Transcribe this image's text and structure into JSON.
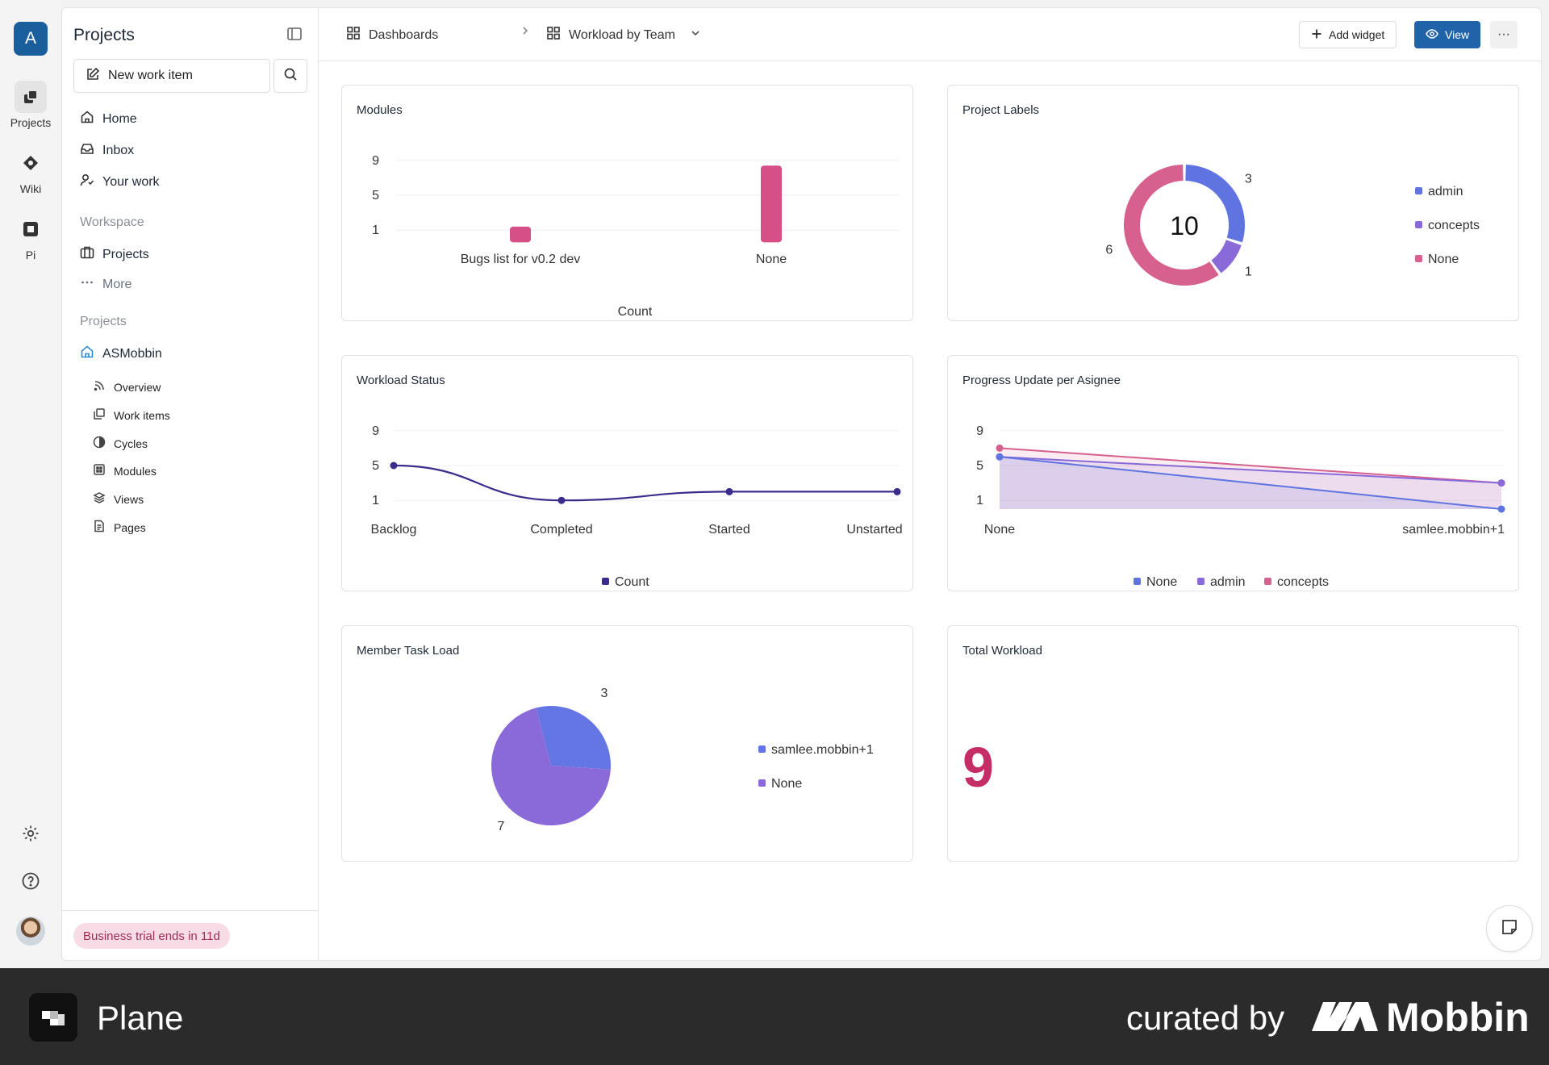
{
  "rail": {
    "workspace_initial": "A",
    "items": [
      {
        "label": "Projects",
        "icon": "projects-icon"
      },
      {
        "label": "Wiki",
        "icon": "wiki-icon"
      },
      {
        "label": "Pi",
        "icon": "pi-icon"
      }
    ]
  },
  "sidebar": {
    "title": "Projects",
    "new_item_label": "New work item",
    "nav": [
      {
        "label": "Home"
      },
      {
        "label": "Inbox"
      },
      {
        "label": "Your work"
      }
    ],
    "workspace_label": "Workspace",
    "workspace_items": [
      {
        "label": "Projects"
      },
      {
        "label": "More"
      }
    ],
    "projects_label": "Projects",
    "project": {
      "name": "ASMobbin",
      "items": [
        {
          "label": "Overview"
        },
        {
          "label": "Work items"
        },
        {
          "label": "Cycles"
        },
        {
          "label": "Modules"
        },
        {
          "label": "Views"
        },
        {
          "label": "Pages"
        }
      ]
    },
    "trial_badge": "Business trial ends in 11d"
  },
  "topbar": {
    "breadcrumb_root": "Dashboards",
    "breadcrumb_current": "Workload by Team",
    "add_widget_label": "Add widget",
    "view_label": "View",
    "more_label": "···"
  },
  "widgets": {
    "modules": {
      "title": "Modules"
    },
    "project_labels": {
      "title": "Project Labels",
      "total": "10"
    },
    "workload_status": {
      "title": "Workload Status"
    },
    "progress": {
      "title": "Progress Update per Asignee"
    },
    "member_task_load": {
      "title": "Member Task Load"
    },
    "total_workload": {
      "title": "Total Workload",
      "value": "9"
    }
  },
  "chart_data": [
    {
      "type": "bar",
      "title": "Modules",
      "categories": [
        "Bugs list for v0.2 dev",
        "None"
      ],
      "values": [
        1,
        8
      ],
      "yticks": [
        9,
        5,
        1
      ],
      "legend": [
        "Count"
      ],
      "color": "#d64f86"
    },
    {
      "type": "pie",
      "title": "Project Labels",
      "center_label": "10",
      "labels": [
        "admin",
        "concepts",
        "None"
      ],
      "values": [
        3,
        1,
        6
      ],
      "colors": [
        "#5f74e0",
        "#8a6ad8",
        "#d6608e"
      ]
    },
    {
      "type": "line",
      "title": "Workload Status",
      "categories": [
        "Backlog",
        "Completed",
        "Started",
        "Unstarted"
      ],
      "values": [
        5,
        1,
        2,
        2
      ],
      "yticks": [
        9,
        5,
        1
      ],
      "legend": [
        "Count"
      ],
      "color": "#3b2b8c"
    },
    {
      "type": "area",
      "title": "Progress Update per Asignee",
      "categories": [
        "None",
        "samlee.mobbin+1"
      ],
      "yticks": [
        9,
        5,
        1
      ],
      "series": [
        {
          "name": "None",
          "values": [
            6,
            0
          ],
          "color": "#5f74e0"
        },
        {
          "name": "admin",
          "values": [
            6,
            3
          ],
          "color": "#8a6ad8"
        },
        {
          "name": "concepts",
          "values": [
            7,
            3
          ],
          "color": "#d6608e"
        }
      ]
    },
    {
      "type": "pie",
      "title": "Member Task Load",
      "labels": [
        "samlee.mobbin+1",
        "None"
      ],
      "values": [
        3,
        7
      ],
      "colors": [
        "#6476e4",
        "#8a6ad8"
      ]
    }
  ],
  "footer": {
    "brand": "Plane",
    "curated_by": "curated by",
    "curator": "Mobbin"
  }
}
